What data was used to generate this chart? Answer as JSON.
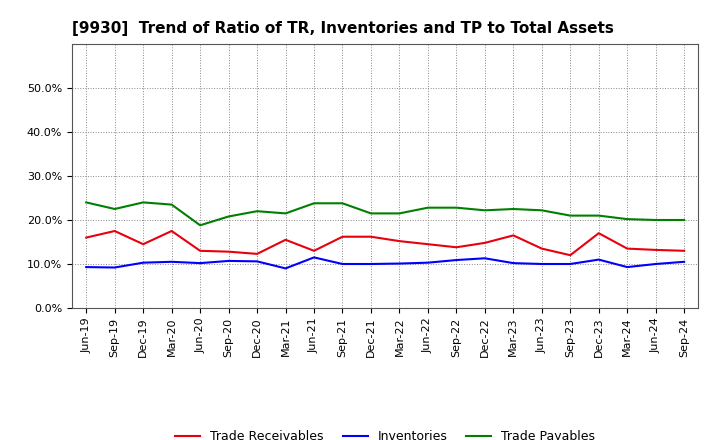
{
  "title": "[9930]  Trend of Ratio of TR, Inventories and TP to Total Assets",
  "x_labels": [
    "Jun-19",
    "Sep-19",
    "Dec-19",
    "Mar-20",
    "Jun-20",
    "Sep-20",
    "Dec-20",
    "Mar-21",
    "Jun-21",
    "Sep-21",
    "Dec-21",
    "Mar-22",
    "Jun-22",
    "Sep-22",
    "Dec-22",
    "Mar-23",
    "Jun-23",
    "Sep-23",
    "Dec-23",
    "Mar-24",
    "Jun-24",
    "Sep-24"
  ],
  "trade_receivables": [
    0.16,
    0.175,
    0.145,
    0.175,
    0.13,
    0.128,
    0.123,
    0.155,
    0.13,
    0.162,
    0.162,
    0.152,
    0.145,
    0.138,
    0.148,
    0.165,
    0.135,
    0.12,
    0.17,
    0.135,
    0.132,
    0.13
  ],
  "inventories": [
    0.093,
    0.092,
    0.103,
    0.105,
    0.102,
    0.107,
    0.106,
    0.09,
    0.115,
    0.1,
    0.1,
    0.101,
    0.103,
    0.109,
    0.113,
    0.102,
    0.1,
    0.1,
    0.11,
    0.093,
    0.1,
    0.105
  ],
  "trade_payables": [
    0.24,
    0.225,
    0.24,
    0.235,
    0.188,
    0.208,
    0.22,
    0.215,
    0.238,
    0.238,
    0.215,
    0.215,
    0.228,
    0.228,
    0.222,
    0.225,
    0.222,
    0.21,
    0.21,
    0.202,
    0.2,
    0.2
  ],
  "tr_color": "#e8000d",
  "inv_color": "#0000ff",
  "tp_color": "#008000",
  "ylim": [
    0.0,
    0.6
  ],
  "yticks": [
    0.0,
    0.1,
    0.2,
    0.3,
    0.4,
    0.5
  ],
  "legend_tr": "Trade Receivables",
  "legend_inv": "Inventories",
  "legend_tp": "Trade Payables",
  "bg_color": "#ffffff",
  "grid_color": "#888888",
  "line_width": 1.5,
  "title_fontsize": 11,
  "tick_fontsize": 8,
  "legend_fontsize": 9
}
